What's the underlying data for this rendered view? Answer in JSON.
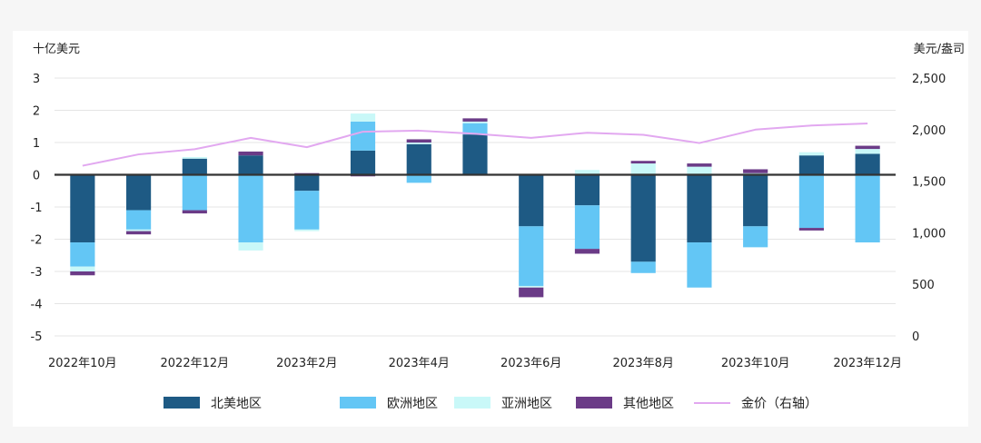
{
  "chart_data": {
    "type": "bar",
    "stacked": true,
    "left_axis_unit": "十亿美元",
    "right_axis_unit": "美元/盎司",
    "ylim": [
      -5,
      3
    ],
    "y_ticks": [
      "3",
      "2",
      "1",
      "0",
      "-1",
      "-2",
      "-3",
      "-4",
      "-5"
    ],
    "y2lim": [
      0,
      2500
    ],
    "y2_ticks": [
      "2,500",
      "2,000",
      "1,500",
      "1,000",
      "500",
      "0"
    ],
    "x_tick_labels": [
      "2022年10月",
      "2022年12月",
      "2023年2月",
      "2023年4月",
      "2023年6月",
      "2023年8月",
      "2023年10月",
      "2023年12月"
    ],
    "categories": [
      "2022-10",
      "2022-11",
      "2022-12",
      "2023-01",
      "2023-02",
      "2023-03",
      "2023-04",
      "2023-05",
      "2023-06",
      "2023-07",
      "2023-08",
      "2023-09",
      "2023-10",
      "2023-11",
      "2023-12"
    ],
    "series": [
      {
        "name": "北美地区",
        "color": "#1e5a84",
        "values": [
          -2.1,
          -1.1,
          0.5,
          0.6,
          -0.5,
          0.75,
          0.95,
          1.25,
          -1.6,
          -0.95,
          -2.7,
          -2.1,
          -1.6,
          0.6,
          0.65
        ]
      },
      {
        "name": "欧洲地区",
        "color": "#63c6f5",
        "values": [
          -0.75,
          -0.6,
          -1.1,
          -2.1,
          -1.2,
          0.9,
          -0.25,
          0.35,
          -1.85,
          -1.35,
          -0.35,
          -1.4,
          -0.65,
          -1.65,
          -2.1
        ]
      },
      {
        "name": "亚洲地区",
        "color": "#c9f8f8",
        "values": [
          -0.15,
          -0.05,
          0.05,
          -0.25,
          -0.05,
          0.25,
          0.05,
          0.05,
          -0.05,
          0.15,
          0.35,
          0.25,
          0.05,
          0.1,
          0.15
        ]
      },
      {
        "name": "其他地区",
        "color": "#6b3b87",
        "values": [
          -0.12,
          -0.1,
          -0.1,
          0.12,
          0.05,
          -0.05,
          0.1,
          0.1,
          -0.3,
          -0.15,
          0.08,
          0.1,
          0.12,
          -0.08,
          0.1
        ]
      }
    ],
    "line_series": {
      "name": "金价（右轴）",
      "axis": "right",
      "color": "#e2a8f0",
      "values": [
        1650,
        1760,
        1810,
        1920,
        1830,
        1980,
        1990,
        1960,
        1920,
        1970,
        1950,
        1870,
        2000,
        2040,
        2060
      ]
    },
    "legend": [
      "北美地区",
      "欧洲地区",
      "亚洲地区",
      "其他地区",
      "金价（右轴）"
    ],
    "legend_position": "bottom",
    "grid": true
  }
}
